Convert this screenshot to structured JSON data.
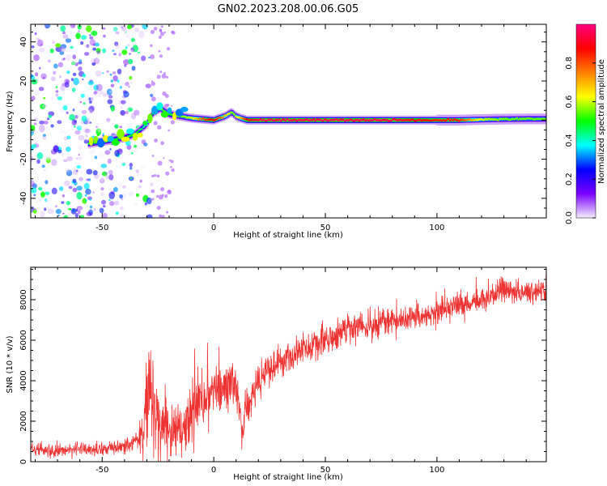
{
  "title": "GN02.2023.208.00.06.G05",
  "chart_data": [
    {
      "type": "heatmap",
      "description_source": "spectrogram",
      "xlabel": "Height of straight line (km)",
      "ylabel": "Frequency (Hz)",
      "xlim": [
        -82,
        149
      ],
      "ylim": [
        -50,
        49
      ],
      "xticks": [
        -50,
        0,
        50,
        100
      ],
      "yticks": [
        -40,
        -20,
        0,
        20,
        40
      ],
      "grid": false,
      "colorbar": {
        "label": "Normalized spectral amplitude",
        "range": [
          0.0,
          1.0
        ],
        "ticks": [
          0.0,
          0.2,
          0.4,
          0.6,
          0.8
        ],
        "tick_labels": [
          "0.0",
          "0.2",
          "0.4",
          "0.6",
          "0.8"
        ],
        "colors": [
          "#f4eefc",
          "#7a00ff",
          "#0000ff",
          "#00ffff",
          "#00ff00",
          "#ffff00",
          "#ff8000",
          "#ff0000",
          "#ff0080"
        ]
      },
      "signal_track": {
        "x": [
          -56,
          -50,
          -45,
          -40,
          -35,
          -30,
          -27,
          -24,
          -20,
          -15,
          -10,
          -5,
          0,
          5,
          8,
          10,
          12,
          15,
          20,
          30,
          40,
          50,
          60,
          70,
          80,
          90,
          100,
          110,
          120,
          130,
          140,
          149
        ],
        "freq_hz": [
          -12,
          -11,
          -10,
          -9,
          -7,
          -2,
          4,
          6,
          3,
          2,
          1,
          0.5,
          0,
          2,
          4,
          2,
          1,
          0,
          0,
          0,
          0,
          0,
          0,
          0,
          0,
          0,
          0,
          0,
          0.3,
          0.5,
          0.6,
          0.6
        ],
        "peak_amplitude": [
          0.5,
          0.55,
          0.5,
          0.45,
          0.5,
          0.4,
          0.5,
          0.55,
          0.5,
          0.55,
          0.6,
          0.8,
          0.9,
          0.7,
          0.55,
          0.6,
          0.7,
          0.9,
          0.95,
          0.95,
          0.95,
          0.95,
          0.95,
          0.95,
          0.95,
          0.9,
          0.85,
          0.85,
          0.6,
          0.55,
          0.55,
          0.55
        ]
      },
      "noise_region_x": [
        -82,
        -35
      ]
    },
    {
      "type": "line",
      "xlabel": "Height of straight line (km)",
      "ylabel": "SNR (10 * v/v)",
      "xlim": [
        -82,
        149
      ],
      "ylim": [
        0,
        9600
      ],
      "xticks": [
        -50,
        0,
        50,
        100
      ],
      "yticks": [
        0,
        2000,
        4000,
        6000,
        8000
      ],
      "grid": false,
      "color": "#ee3333",
      "series": [
        {
          "x": [
            -82,
            -75,
            -70,
            -65,
            -60,
            -55,
            -50,
            -45,
            -40,
            -35,
            -32,
            -30,
            -28,
            -26,
            -24,
            -22,
            -20,
            -18,
            -16,
            -14,
            -12,
            -10,
            -8,
            -6,
            -4,
            -2,
            0,
            2,
            4,
            6,
            8,
            10,
            12,
            13,
            14,
            16,
            18,
            20,
            25,
            30,
            35,
            40,
            45,
            50,
            55,
            60,
            65,
            70,
            75,
            80,
            85,
            90,
            95,
            100,
            105,
            110,
            115,
            120,
            125,
            130,
            135,
            140,
            145,
            149
          ],
          "y": [
            600,
            550,
            550,
            600,
            650,
            600,
            650,
            700,
            800,
            900,
            1500,
            2500,
            3500,
            2000,
            1500,
            2500,
            1500,
            1200,
            1800,
            1400,
            2000,
            2200,
            2600,
            2800,
            3000,
            3200,
            3400,
            3600,
            3400,
            3800,
            4200,
            3500,
            2200,
            1300,
            2600,
            3000,
            3500,
            4000,
            4500,
            4900,
            5200,
            5600,
            5700,
            6000,
            6200,
            6500,
            6600,
            6700,
            6800,
            6900,
            7000,
            7100,
            7200,
            7400,
            7600,
            7700,
            7800,
            8000,
            8200,
            8600,
            8400,
            8300,
            8400,
            8300
          ],
          "noise_amplitude": [
            300,
            300,
            300,
            300,
            300,
            300,
            300,
            300,
            350,
            400,
            900,
            1800,
            2200,
            1600,
            1300,
            1600,
            1300,
            900,
            1200,
            1000,
            1600,
            1800,
            1800,
            1400,
            1300,
            1200,
            1200,
            1200,
            1000,
            1200,
            1300,
            1100,
            800,
            600,
            900,
            800,
            800,
            800,
            700,
            650,
            650,
            650,
            650,
            650,
            650,
            650,
            650,
            650,
            600,
            600,
            600,
            600,
            600,
            600,
            600,
            600,
            550,
            550,
            550,
            600,
            550,
            500,
            500,
            500
          ]
        }
      ]
    }
  ]
}
